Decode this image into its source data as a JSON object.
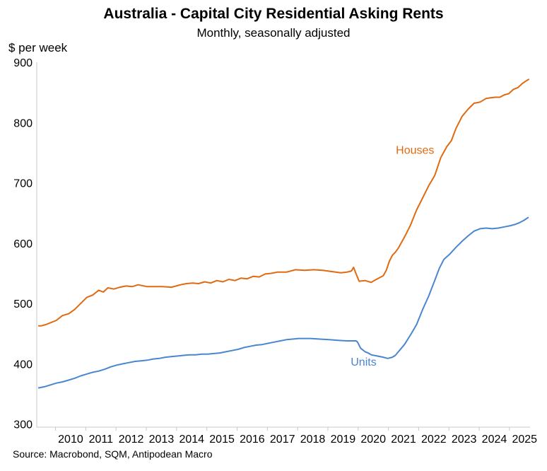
{
  "chart_data": {
    "type": "line",
    "title": "Australia - Capital City Residential Asking Rents",
    "subtitle": "Monthly, seasonally adjusted",
    "ylabel": "$ per week",
    "xlabel": "",
    "source": "Source: Macrobond, SQM, Antipodean Macro",
    "ylim": [
      295,
      900
    ],
    "yticks": [
      300,
      400,
      500,
      600,
      700,
      800,
      900
    ],
    "xlim": [
      2009.05,
      2025.35
    ],
    "xtick_positions": [
      2009.67,
      2010.67,
      2011.67,
      2012.67,
      2013.67,
      2014.67,
      2015.67,
      2016.67,
      2017.67,
      2018.67,
      2019.67,
      2020.67,
      2021.67,
      2022.67,
      2023.67,
      2024.67
    ],
    "xtick_labels": [
      "2010",
      "2011",
      "2012",
      "2013",
      "2014",
      "2015",
      "2016",
      "2017",
      "2018",
      "2019",
      "2020",
      "2021",
      "2022",
      "2023",
      "2024",
      "2025"
    ],
    "grid": false,
    "series": [
      {
        "name": "Houses",
        "color": "#e06a10",
        "label_at": [
          2010.97,
          754
        ],
        "x": [
          2009.1,
          2009.2,
          2009.35,
          2009.5,
          2009.7,
          2009.9,
          2010.1,
          2010.3,
          2010.5,
          2010.7,
          2010.9,
          2011.1,
          2011.25,
          2011.4,
          2011.6,
          2011.8,
          2012.0,
          2012.2,
          2012.4,
          2012.7,
          2013.0,
          2013.2,
          2013.5,
          2013.8,
          2014.0,
          2014.2,
          2014.4,
          2014.6,
          2014.8,
          2015.0,
          2015.2,
          2015.4,
          2015.6,
          2015.8,
          2016.0,
          2016.2,
          2016.4,
          2016.6,
          2016.8,
          2017.0,
          2017.3,
          2017.6,
          2017.9,
          2018.2,
          2018.5,
          2018.8,
          2019.1,
          2019.3,
          2019.45,
          2019.52,
          2019.58,
          2019.7,
          2019.9,
          2020.1,
          2020.2,
          2020.35,
          2020.5,
          2020.6,
          2020.7,
          2020.8,
          2020.9,
          2021.0,
          2021.2,
          2021.4,
          2021.6,
          2021.8,
          2022.0,
          2022.2,
          2022.4,
          2022.6,
          2022.75,
          2022.9,
          2023.1,
          2023.3,
          2023.5,
          2023.7,
          2023.9,
          2024.05,
          2024.2,
          2024.35,
          2024.5,
          2024.65,
          2024.8,
          2024.95,
          2025.1,
          2025.25,
          2025.32
        ],
        "values": [
          463,
          463,
          465,
          468,
          472,
          480,
          483,
          490,
          500,
          510,
          514,
          522,
          519,
          526,
          524,
          527,
          529,
          528,
          531,
          528,
          528,
          528,
          527,
          531,
          533,
          534,
          533,
          536,
          534,
          538,
          536,
          540,
          538,
          542,
          541,
          545,
          544,
          549,
          550,
          552,
          552,
          556,
          555,
          556,
          555,
          553,
          551,
          552,
          554,
          560,
          552,
          537,
          538,
          535,
          538,
          542,
          546,
          555,
          570,
          580,
          585,
          592,
          610,
          630,
          655,
          675,
          695,
          712,
          742,
          760,
          770,
          790,
          810,
          822,
          832,
          834,
          840,
          841,
          842,
          842,
          846,
          848,
          855,
          858,
          865,
          870,
          872
        ]
      },
      {
        "name": "Units",
        "color": "#4a86cf",
        "label_at": [
          2019.35,
          402
        ],
        "x": [
          2009.1,
          2009.3,
          2009.5,
          2009.7,
          2009.9,
          2010.1,
          2010.3,
          2010.5,
          2010.7,
          2010.9,
          2011.1,
          2011.3,
          2011.5,
          2011.7,
          2011.9,
          2012.1,
          2012.3,
          2012.5,
          2012.7,
          2012.9,
          2013.1,
          2013.3,
          2013.5,
          2013.7,
          2013.9,
          2014.1,
          2014.3,
          2014.5,
          2014.7,
          2014.9,
          2015.1,
          2015.3,
          2015.5,
          2015.7,
          2015.9,
          2016.1,
          2016.3,
          2016.5,
          2016.7,
          2016.9,
          2017.1,
          2017.3,
          2017.5,
          2017.7,
          2017.9,
          2018.1,
          2018.4,
          2018.7,
          2019.0,
          2019.3,
          2019.5,
          2019.6,
          2019.65,
          2019.75,
          2019.9,
          2020.0,
          2020.1,
          2020.3,
          2020.5,
          2020.65,
          2020.8,
          2020.9,
          2021.0,
          2021.2,
          2021.4,
          2021.6,
          2021.8,
          2022.0,
          2022.2,
          2022.35,
          2022.5,
          2022.7,
          2022.9,
          2023.1,
          2023.3,
          2023.5,
          2023.7,
          2023.9,
          2024.1,
          2024.3,
          2024.5,
          2024.7,
          2024.85,
          2025.0,
          2025.15,
          2025.3
        ],
        "values": [
          360,
          362,
          365,
          368,
          370,
          373,
          376,
          380,
          383,
          386,
          388,
          391,
          395,
          398,
          400,
          402,
          404,
          405,
          406,
          408,
          409,
          411,
          412,
          413,
          414,
          415,
          415,
          416,
          416,
          417,
          418,
          420,
          422,
          424,
          427,
          429,
          431,
          432,
          434,
          436,
          438,
          440,
          441,
          442,
          442,
          442,
          441,
          440,
          439,
          438,
          438,
          438,
          436,
          426,
          420,
          418,
          415,
          413,
          411,
          409,
          411,
          414,
          420,
          432,
          448,
          465,
          490,
          512,
          538,
          558,
          573,
          582,
          593,
          603,
          612,
          620,
          624,
          625,
          624,
          625,
          627,
          629,
          631,
          634,
          638,
          643
        ]
      }
    ]
  }
}
